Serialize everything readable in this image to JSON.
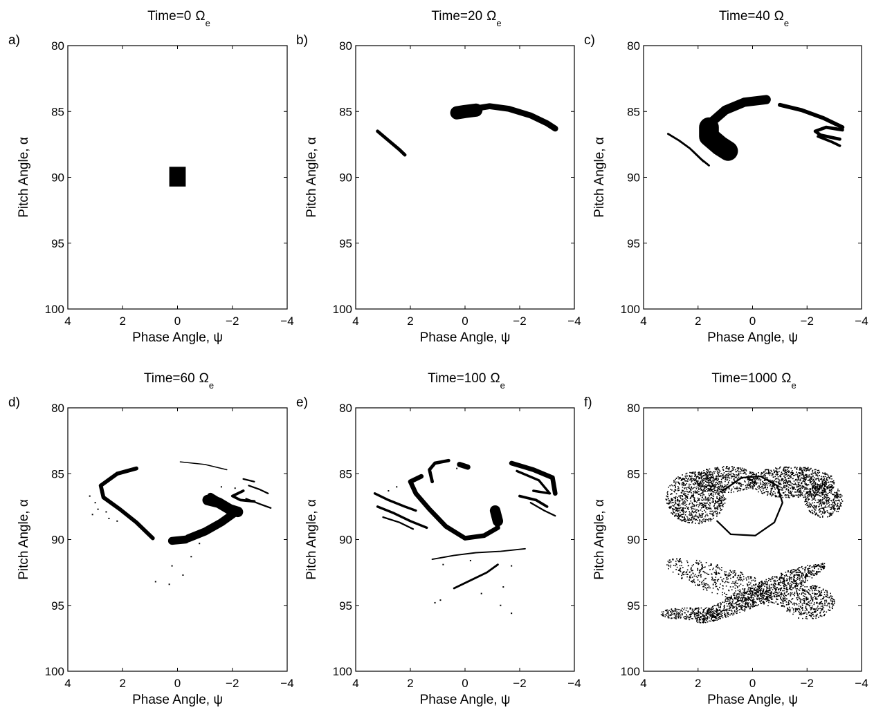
{
  "figure": {
    "ink_color": "#000000",
    "background_color": "#ffffff",
    "xlabel": "Phase Angle, ψ",
    "ylabel": "Pitch Angle, α",
    "x_ticks": [
      "4",
      "2",
      "0",
      "−2",
      "−4"
    ],
    "y_ticks": [
      "80",
      "85",
      "90",
      "95",
      "100"
    ],
    "title_prefix": "Time=",
    "title_unit": "Ω",
    "title_unit_subscript": "e"
  },
  "chart_data": [
    {
      "type": "scatter",
      "panel_label": "a)",
      "time": "0",
      "xlim": [
        4,
        -4
      ],
      "ylim": [
        100,
        80
      ],
      "patches": [
        {
          "shape": "rect",
          "x0": -0.3,
          "x1": 0.3,
          "y0": 89.2,
          "y1": 90.7
        }
      ]
    },
    {
      "type": "scatter",
      "panel_label": "b)",
      "time": "20",
      "xlim": [
        4,
        -4
      ],
      "ylim": [
        100,
        80
      ],
      "curves": [
        {
          "points": [
            [
              3.2,
              86.5
            ],
            [
              2.8,
              87.2
            ],
            [
              2.4,
              87.9
            ],
            [
              2.2,
              88.3
            ]
          ],
          "width": 0.25
        },
        {
          "points": [
            [
              0.1,
              85.1
            ],
            [
              -0.3,
              84.8
            ],
            [
              -0.9,
              84.6
            ],
            [
              -1.6,
              84.8
            ],
            [
              -2.4,
              85.3
            ],
            [
              -3.0,
              85.9
            ],
            [
              -3.3,
              86.3
            ]
          ],
          "width": 0.45
        },
        {
          "points": [
            [
              0.3,
              85.1
            ],
            [
              0.0,
              85.0
            ],
            [
              -0.4,
              84.9
            ]
          ],
          "width": 1.0
        }
      ]
    },
    {
      "type": "scatter",
      "panel_label": "c)",
      "time": "40",
      "xlim": [
        4,
        -4
      ],
      "ylim": [
        100,
        80
      ],
      "curves": [
        {
          "points": [
            [
              -0.5,
              84.1
            ],
            [
              0.3,
              84.3
            ],
            [
              1.0,
              84.9
            ],
            [
              1.5,
              85.8
            ],
            [
              1.7,
              86.7
            ],
            [
              1.5,
              87.4
            ],
            [
              1.1,
              87.9
            ],
            [
              0.8,
              88.1
            ]
          ],
          "width": 0.7
        },
        {
          "points": [
            [
              1.6,
              86.2
            ],
            [
              1.6,
              86.9
            ],
            [
              1.2,
              87.6
            ],
            [
              0.9,
              88.0
            ]
          ],
          "width": 1.5
        },
        {
          "points": [
            [
              -1.0,
              84.5
            ],
            [
              -1.8,
              84.9
            ],
            [
              -2.6,
              85.5
            ],
            [
              -3.3,
              86.2
            ]
          ],
          "width": 0.3
        },
        {
          "points": [
            [
              -3.3,
              86.4
            ],
            [
              -2.7,
              86.2
            ],
            [
              -2.3,
              86.5
            ],
            [
              -2.5,
              86.8
            ],
            [
              -3.2,
              87.1
            ]
          ],
          "width": 0.25
        },
        {
          "points": [
            [
              -2.4,
              86.9
            ],
            [
              -2.9,
              87.3
            ],
            [
              -3.2,
              87.6
            ]
          ],
          "width": 0.2
        },
        {
          "points": [
            [
              3.1,
              86.7
            ],
            [
              2.7,
              87.2
            ],
            [
              2.3,
              87.8
            ],
            [
              2.0,
              88.4
            ],
            [
              1.8,
              88.8
            ]
          ],
          "width": 0.15
        },
        {
          "points": [
            [
              2.2,
              88.0
            ],
            [
              1.9,
              88.6
            ],
            [
              1.6,
              89.1
            ]
          ],
          "width": 0.15
        }
      ]
    },
    {
      "type": "scatter",
      "panel_label": "d)",
      "time": "60",
      "xlim": [
        4,
        -4
      ],
      "ylim": [
        100,
        80
      ],
      "curves": [
        {
          "points": [
            [
              1.5,
              84.6
            ],
            [
              2.2,
              85.0
            ],
            [
              2.8,
              85.9
            ],
            [
              2.7,
              86.8
            ],
            [
              2.1,
              87.7
            ],
            [
              1.5,
              88.7
            ],
            [
              0.9,
              89.9
            ]
          ],
          "width": 0.3
        },
        {
          "points": [
            [
              0.2,
              90.1
            ],
            [
              -0.3,
              90.0
            ]
          ],
          "width": 0.6
        },
        {
          "points": [
            [
              -0.4,
              89.9
            ],
            [
              -1.0,
              89.4
            ],
            [
              -1.6,
              88.7
            ],
            [
              -2.0,
              88.1
            ],
            [
              -2.2,
              87.8
            ]
          ],
          "width": 0.6
        },
        {
          "points": [
            [
              -1.1,
              87.0
            ],
            [
              -1.5,
              87.2
            ],
            [
              -1.9,
              87.7
            ],
            [
              -2.2,
              87.9
            ]
          ],
          "width": 0.8
        },
        {
          "points": [
            [
              -1.2,
              86.7
            ],
            [
              -1.6,
              87.2
            ]
          ],
          "width": 0.5
        },
        {
          "points": [
            [
              -2.4,
              86.3
            ],
            [
              -2.0,
              86.7
            ],
            [
              -2.3,
              87.0
            ],
            [
              -2.8,
              87.1
            ]
          ],
          "width": 0.2
        },
        {
          "points": [
            [
              -2.6,
              85.9
            ],
            [
              -3.0,
              86.2
            ],
            [
              -3.3,
              86.5
            ]
          ],
          "width": 0.12
        },
        {
          "points": [
            [
              -2.5,
              86.9
            ],
            [
              -3.0,
              87.3
            ],
            [
              -3.4,
              87.6
            ]
          ],
          "width": 0.12
        },
        {
          "points": [
            [
              -2.4,
              85.4
            ],
            [
              -2.8,
              85.6
            ]
          ],
          "width": 0.12
        },
        {
          "points": [
            [
              -0.1,
              84.1
            ],
            [
              -1.0,
              84.3
            ],
            [
              -1.8,
              84.7
            ]
          ],
          "width": 0.08
        }
      ],
      "points": [
        [
          3.2,
          86.7
        ],
        [
          3.0,
          87.2
        ],
        [
          2.9,
          87.7
        ],
        [
          3.1,
          88.1
        ],
        [
          2.5,
          88.4
        ],
        [
          2.6,
          87.9
        ],
        [
          2.2,
          88.6
        ],
        [
          -0.8,
          90.3
        ],
        [
          -0.5,
          91.3
        ],
        [
          0.2,
          92.0
        ],
        [
          -0.2,
          92.7
        ],
        [
          0.8,
          93.2
        ],
        [
          0.3,
          93.4
        ],
        [
          -1.6,
          86.0
        ],
        [
          -2.1,
          86.1
        ]
      ]
    },
    {
      "type": "scatter",
      "panel_label": "e)",
      "time": "100",
      "xlim": [
        4,
        -4
      ],
      "ylim": [
        100,
        80
      ],
      "curves": [
        {
          "points": [
            [
              1.6,
              85.2
            ],
            [
              2.0,
              85.6
            ],
            [
              1.8,
              86.5
            ],
            [
              1.3,
              87.7
            ],
            [
              0.7,
              89.0
            ],
            [
              0.0,
              89.9
            ],
            [
              -0.7,
              89.7
            ],
            [
              -1.2,
              89.1
            ],
            [
              -1.1,
              88.2
            ]
          ],
          "width": 0.35
        },
        {
          "points": [
            [
              -1.1,
              87.8
            ],
            [
              -1.2,
              88.6
            ]
          ],
          "width": 0.8
        },
        {
          "points": [
            [
              0.6,
              84.0
            ],
            [
              1.1,
              84.2
            ],
            [
              1.3,
              84.7
            ],
            [
              1.2,
              85.6
            ]
          ],
          "width": 0.25
        },
        {
          "points": [
            [
              0.2,
              84.3
            ],
            [
              -0.1,
              84.5
            ]
          ],
          "width": 0.4
        },
        {
          "points": [
            [
              -1.7,
              84.2
            ],
            [
              -2.5,
              84.7
            ],
            [
              -3.2,
              85.3
            ],
            [
              -3.3,
              86.5
            ]
          ],
          "width": 0.35
        },
        {
          "points": [
            [
              -1.9,
              84.8
            ],
            [
              -2.7,
              85.5
            ],
            [
              -3.1,
              86.5
            ],
            [
              -2.5,
              86.3
            ]
          ],
          "width": 0.18
        },
        {
          "points": [
            [
              -2.0,
              86.7
            ],
            [
              -2.6,
              87.0
            ],
            [
              -3.0,
              87.5
            ]
          ],
          "width": 0.2
        },
        {
          "points": [
            [
              -2.4,
              87.2
            ],
            [
              -2.9,
              87.8
            ],
            [
              -3.3,
              88.2
            ]
          ],
          "width": 0.12
        },
        {
          "points": [
            [
              3.3,
              86.5
            ],
            [
              2.8,
              87.0
            ],
            [
              2.2,
              87.5
            ],
            [
              1.8,
              87.8
            ]
          ],
          "width": 0.18
        },
        {
          "points": [
            [
              3.2,
              87.5
            ],
            [
              2.6,
              88.0
            ],
            [
              2.0,
              88.6
            ],
            [
              1.4,
              89.1
            ]
          ],
          "width": 0.18
        },
        {
          "points": [
            [
              3.0,
              88.3
            ],
            [
              2.4,
              88.7
            ],
            [
              1.9,
              89.2
            ]
          ],
          "width": 0.12
        },
        {
          "points": [
            [
              1.2,
              91.5
            ],
            [
              0.4,
              91.2
            ],
            [
              -0.4,
              91.0
            ],
            [
              -1.3,
              90.9
            ],
            [
              -2.2,
              90.7
            ]
          ],
          "width": 0.1
        },
        {
          "points": [
            [
              0.4,
              93.7
            ],
            [
              -0.2,
              93.1
            ],
            [
              -0.8,
              92.5
            ],
            [
              -1.2,
              91.9
            ]
          ],
          "width": 0.15
        }
      ],
      "points": [
        [
          1.1,
          94.8
        ],
        [
          0.9,
          94.6
        ],
        [
          -0.6,
          94.1
        ],
        [
          -1.4,
          93.6
        ],
        [
          -1.7,
          92.0
        ],
        [
          -1.3,
          95.0
        ],
        [
          -1.7,
          95.6
        ],
        [
          -0.2,
          91.6
        ],
        [
          0.8,
          91.9
        ],
        [
          2.5,
          86.0
        ],
        [
          2.8,
          86.3
        ],
        [
          -1.8,
          84.3
        ],
        [
          0.3,
          84.6
        ]
      ]
    },
    {
      "type": "scatter",
      "panel_label": "f)",
      "time": "1000",
      "xlim": [
        4,
        -4
      ],
      "ylim": [
        100,
        80
      ],
      "clouds": [
        {
          "cx": 2.1,
          "cy": 86.8,
          "rx": 1.1,
          "ry": 2.0,
          "n": 900
        },
        {
          "cx": 1.0,
          "cy": 85.4,
          "rx": 1.2,
          "ry": 1.0,
          "n": 450
        },
        {
          "cx": -1.4,
          "cy": 85.6,
          "rx": 1.6,
          "ry": 1.2,
          "n": 850
        },
        {
          "cx": -2.6,
          "cy": 87.0,
          "rx": 0.7,
          "ry": 1.3,
          "n": 400
        },
        {
          "cx": -0.3,
          "cy": 94.0,
          "rx": 2.6,
          "ry": 0.8,
          "angle": -24,
          "n": 1000
        },
        {
          "cx": 1.0,
          "cy": 93.2,
          "rx": 2.3,
          "ry": 1.1,
          "angle": 18,
          "n": 500
        },
        {
          "cx": -2.0,
          "cy": 94.7,
          "rx": 1.0,
          "ry": 1.3,
          "n": 450
        },
        {
          "cx": 2.2,
          "cy": 95.6,
          "rx": 1.2,
          "ry": 0.5,
          "n": 280
        }
      ],
      "curves": [
        {
          "points": [
            [
              1.1,
              86.3
            ],
            [
              0.4,
              85.3
            ],
            [
              -0.3,
              85.2
            ],
            [
              -0.9,
              85.9
            ],
            [
              -1.1,
              87.2
            ],
            [
              -0.8,
              88.7
            ],
            [
              -0.1,
              89.7
            ],
            [
              0.8,
              89.6
            ],
            [
              1.3,
              88.6
            ]
          ],
          "width": 0.12
        }
      ]
    }
  ]
}
